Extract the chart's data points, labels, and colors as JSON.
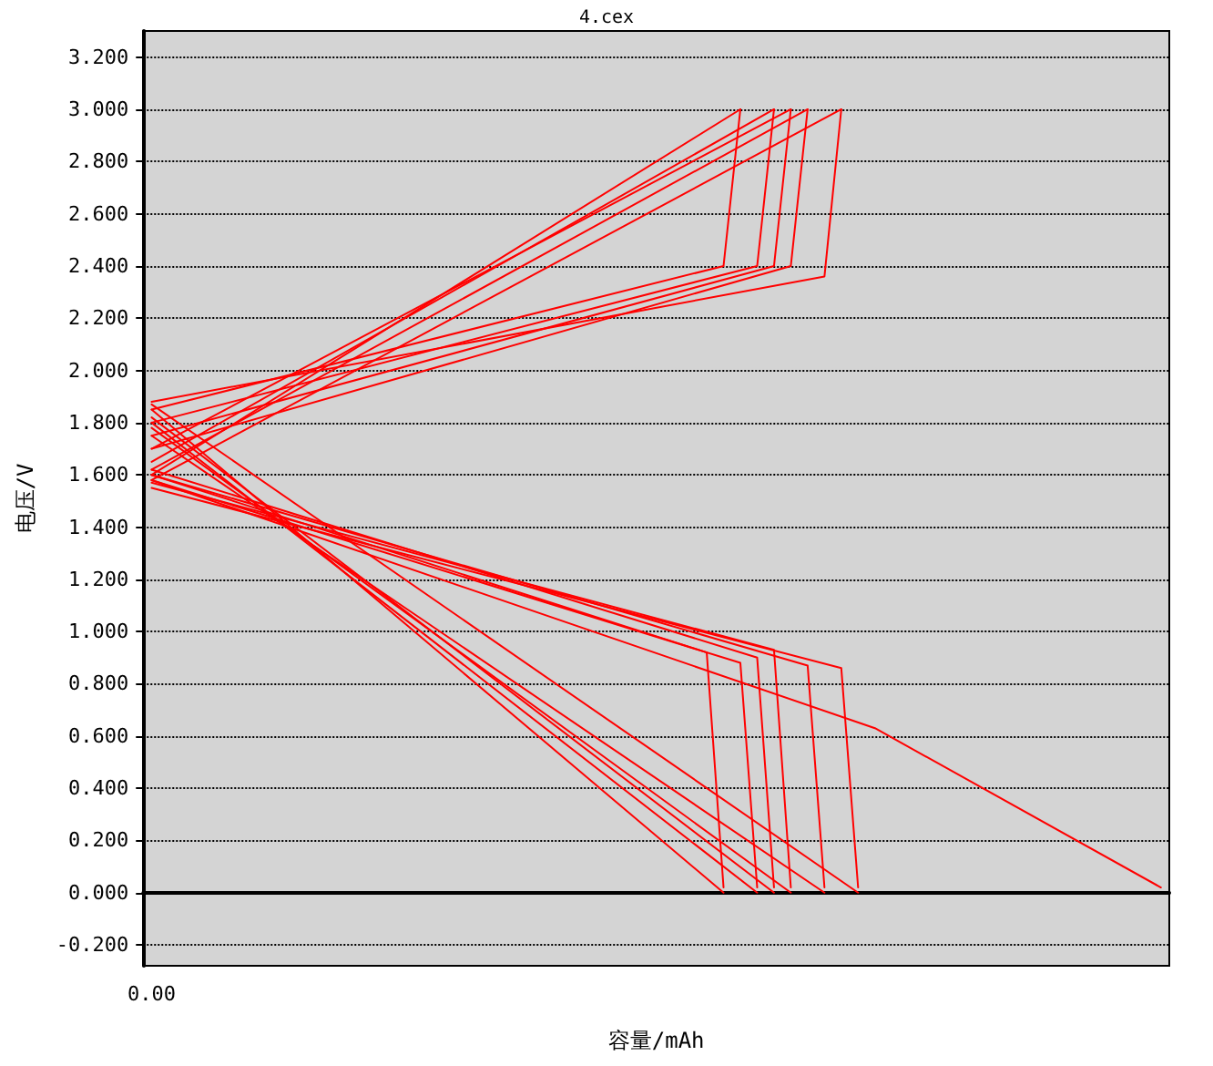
{
  "chart_data": {
    "type": "line",
    "title": "4.cex",
    "xlabel": "容量/mAh",
    "ylabel": "电压/V",
    "categories": [
      "0.00",
      null,
      null,
      null,
      null,
      null,
      null,
      null,
      null,
      null,
      null,
      null,
      null,
      null,
      null,
      null,
      null,
      null,
      null,
      null,
      null,
      null,
      null,
      null,
      null,
      null,
      null,
      null,
      null,
      null,
      null,
      null,
      null,
      null,
      null,
      null,
      null,
      null,
      null,
      null,
      null,
      null,
      null,
      null,
      null,
      null,
      null,
      null,
      null,
      null,
      null,
      null,
      null,
      null,
      null,
      null,
      null,
      null,
      null,
      null,
      null
    ],
    "ylim": [
      -0.28,
      3.3
    ],
    "yticks": [
      {
        "value": -0.2,
        "label": "-0.200"
      },
      {
        "value": 0,
        "label": "0.000"
      },
      {
        "value": 0.2,
        "label": "0.200"
      },
      {
        "value": 0.4,
        "label": "0.400"
      },
      {
        "value": 0.6,
        "label": "0.600"
      },
      {
        "value": 0.8,
        "label": "0.800"
      },
      {
        "value": 1,
        "label": "1.000"
      },
      {
        "value": 1.2,
        "label": "1.200"
      },
      {
        "value": 1.4,
        "label": "1.400"
      },
      {
        "value": 1.6,
        "label": "1.600"
      },
      {
        "value": 1.8,
        "label": "1.800"
      },
      {
        "value": 2,
        "label": "2.000"
      },
      {
        "value": 2.2,
        "label": "2.200"
      },
      {
        "value": 2.4,
        "label": "2.400"
      },
      {
        "value": 2.6,
        "label": "2.600"
      },
      {
        "value": 2.8,
        "label": "2.800"
      },
      {
        "value": 3,
        "label": "3.000"
      },
      {
        "value": 3.2,
        "label": "3.200"
      }
    ],
    "grid": "y",
    "marker": "none",
    "line_style": "solid",
    "series": [
      {
        "color": "#ff0000",
        "values": [
          1.85,
          null,
          null,
          null,
          null,
          null,
          null,
          null,
          null,
          null,
          null,
          null,
          null,
          null,
          null,
          null,
          null,
          null,
          null,
          null,
          null,
          null,
          null,
          null,
          null,
          null,
          null,
          null,
          null,
          null,
          null,
          null,
          null,
          null,
          2.4,
          3.0,
          null,
          null,
          null,
          null,
          null,
          null,
          null,
          null,
          null,
          null,
          null,
          null,
          null,
          null,
          null,
          null,
          null,
          null,
          null,
          null,
          null,
          null,
          null,
          null,
          null
        ]
      },
      {
        "color": "#ff0000",
        "values": [
          1.6,
          null,
          null,
          null,
          null,
          null,
          null,
          null,
          null,
          null,
          null,
          null,
          null,
          null,
          null,
          null,
          null,
          null,
          null,
          null,
          null,
          null,
          null,
          null,
          null,
          null,
          null,
          null,
          null,
          null,
          null,
          null,
          null,
          null,
          null,
          3.0,
          null,
          null,
          null,
          null,
          null,
          null,
          null,
          null,
          null,
          null,
          null,
          null,
          null,
          null,
          null,
          null,
          null,
          null,
          null,
          null,
          null,
          null,
          null,
          null,
          null
        ]
      },
      {
        "color": "#ff0000",
        "values": [
          1.8,
          null,
          null,
          null,
          null,
          null,
          null,
          null,
          null,
          null,
          null,
          null,
          null,
          null,
          null,
          null,
          null,
          null,
          null,
          null,
          null,
          null,
          null,
          null,
          null,
          null,
          null,
          null,
          null,
          null,
          null,
          null,
          null,
          null,
          null,
          null,
          2.4,
          3.0,
          null,
          null,
          null,
          null,
          null,
          null,
          null,
          null,
          null,
          null,
          null,
          null,
          null,
          null,
          null,
          null,
          null,
          null,
          null,
          null,
          null,
          null,
          null
        ]
      },
      {
        "color": "#ff0000",
        "values": [
          1.65,
          null,
          null,
          null,
          null,
          null,
          null,
          null,
          null,
          null,
          null,
          null,
          null,
          null,
          null,
          null,
          null,
          null,
          null,
          null,
          null,
          null,
          null,
          null,
          null,
          null,
          null,
          null,
          null,
          null,
          null,
          null,
          null,
          null,
          null,
          null,
          null,
          3.0,
          null,
          null,
          null,
          null,
          null,
          null,
          null,
          null,
          null,
          null,
          null,
          null,
          null,
          null,
          null,
          null,
          null,
          null,
          null,
          null,
          null,
          null,
          null
        ]
      },
      {
        "color": "#ff0000",
        "values": [
          1.75,
          null,
          null,
          null,
          null,
          null,
          null,
          null,
          null,
          null,
          null,
          null,
          null,
          null,
          null,
          null,
          null,
          null,
          null,
          null,
          null,
          null,
          null,
          null,
          null,
          null,
          null,
          null,
          null,
          null,
          null,
          null,
          null,
          null,
          null,
          null,
          null,
          2.4,
          3.0,
          null,
          null,
          null,
          null,
          null,
          null,
          null,
          null,
          null,
          null,
          null,
          null,
          null,
          null,
          null,
          null,
          null,
          null,
          null,
          null,
          null,
          null
        ]
      },
      {
        "color": "#ff0000",
        "values": [
          1.7,
          null,
          null,
          null,
          null,
          null,
          null,
          null,
          null,
          null,
          null,
          null,
          null,
          null,
          null,
          null,
          null,
          null,
          null,
          null,
          null,
          null,
          null,
          null,
          null,
          null,
          null,
          null,
          null,
          null,
          null,
          null,
          null,
          null,
          null,
          null,
          null,
          null,
          3.0,
          null,
          null,
          null,
          null,
          null,
          null,
          null,
          null,
          null,
          null,
          null,
          null,
          null,
          null,
          null,
          null,
          null,
          null,
          null,
          null,
          null,
          null
        ]
      },
      {
        "color": "#ff0000",
        "values": [
          1.7,
          null,
          null,
          null,
          null,
          null,
          null,
          null,
          null,
          null,
          null,
          null,
          null,
          null,
          null,
          null,
          null,
          null,
          null,
          null,
          null,
          null,
          null,
          null,
          null,
          null,
          null,
          null,
          null,
          null,
          null,
          null,
          null,
          null,
          null,
          null,
          null,
          null,
          2.4,
          3.0,
          null,
          null,
          null,
          null,
          null,
          null,
          null,
          null,
          null,
          null,
          null,
          null,
          null,
          null,
          null,
          null,
          null,
          null,
          null,
          null,
          null
        ]
      },
      {
        "color": "#ff0000",
        "values": [
          1.62,
          null,
          null,
          null,
          null,
          null,
          null,
          null,
          null,
          null,
          null,
          null,
          null,
          null,
          null,
          null,
          null,
          null,
          null,
          null,
          null,
          null,
          null,
          null,
          null,
          null,
          null,
          null,
          null,
          null,
          null,
          null,
          null,
          null,
          null,
          null,
          null,
          null,
          null,
          3.0,
          null,
          null,
          null,
          null,
          null,
          null,
          null,
          null,
          null,
          null,
          null,
          null,
          null,
          null,
          null,
          null,
          null,
          null,
          null,
          null,
          null
        ]
      },
      {
        "color": "#ff0000",
        "values": [
          1.88,
          null,
          null,
          null,
          null,
          null,
          null,
          null,
          null,
          null,
          null,
          null,
          null,
          null,
          null,
          null,
          null,
          null,
          null,
          null,
          null,
          null,
          null,
          null,
          null,
          null,
          null,
          null,
          null,
          null,
          null,
          null,
          null,
          null,
          null,
          null,
          null,
          null,
          null,
          null,
          2.36,
          3.0,
          null,
          null,
          null,
          null,
          null,
          null,
          null,
          null,
          null,
          null,
          null,
          null,
          null,
          null,
          null,
          null,
          null,
          null,
          null
        ]
      },
      {
        "color": "#ff0000",
        "values": [
          1.58,
          null,
          null,
          null,
          null,
          null,
          null,
          null,
          null,
          null,
          null,
          null,
          null,
          null,
          null,
          null,
          null,
          null,
          null,
          null,
          null,
          null,
          null,
          null,
          null,
          null,
          null,
          null,
          null,
          null,
          null,
          null,
          null,
          null,
          null,
          null,
          null,
          null,
          null,
          null,
          null,
          3.0,
          null,
          null,
          null,
          null,
          null,
          null,
          null,
          null,
          null,
          null,
          null,
          null,
          null,
          null,
          null,
          null,
          null,
          null,
          null
        ]
      },
      {
        "color": "#ff0000",
        "values": [
          1.6,
          null,
          null,
          null,
          null,
          null,
          null,
          null,
          null,
          null,
          null,
          null,
          null,
          null,
          null,
          null,
          null,
          null,
          null,
          null,
          null,
          null,
          null,
          null,
          null,
          null,
          null,
          null,
          null,
          null,
          null,
          null,
          null,
          0.92,
          0.02,
          null,
          null,
          null,
          null,
          null,
          null,
          null,
          null,
          null,
          null,
          null,
          null,
          null,
          null,
          null,
          null,
          null,
          null,
          null,
          null,
          null,
          null,
          null,
          null,
          null,
          null
        ]
      },
      {
        "color": "#ff0000",
        "values": [
          1.85,
          null,
          null,
          null,
          null,
          null,
          null,
          null,
          null,
          null,
          null,
          null,
          null,
          null,
          null,
          null,
          null,
          null,
          null,
          null,
          null,
          null,
          null,
          null,
          null,
          null,
          null,
          null,
          null,
          null,
          null,
          null,
          null,
          null,
          0,
          null,
          null,
          null,
          null,
          null,
          null,
          null,
          null,
          null,
          null,
          null,
          null,
          null,
          null,
          null,
          null,
          null,
          null,
          null,
          null,
          null,
          null,
          null,
          null,
          null,
          null
        ]
      },
      {
        "color": "#ff0000",
        "values": [
          1.58,
          null,
          null,
          null,
          null,
          null,
          null,
          null,
          null,
          null,
          null,
          null,
          null,
          null,
          null,
          null,
          null,
          null,
          null,
          null,
          null,
          null,
          null,
          null,
          null,
          null,
          null,
          null,
          null,
          null,
          null,
          null,
          null,
          null,
          null,
          0.88,
          0.02,
          null,
          null,
          null,
          null,
          null,
          null,
          null,
          null,
          null,
          null,
          null,
          null,
          null,
          null,
          null,
          null,
          null,
          null,
          null,
          null,
          null,
          null,
          null,
          null
        ]
      },
      {
        "color": "#ff0000",
        "values": [
          1.8,
          null,
          null,
          null,
          null,
          null,
          null,
          null,
          null,
          null,
          null,
          null,
          null,
          null,
          null,
          null,
          null,
          null,
          null,
          null,
          null,
          null,
          null,
          null,
          null,
          null,
          null,
          null,
          null,
          null,
          null,
          null,
          null,
          null,
          null,
          null,
          0,
          null,
          null,
          null,
          null,
          null,
          null,
          null,
          null,
          null,
          null,
          null,
          null,
          null,
          null,
          null,
          null,
          null,
          null,
          null,
          null,
          null,
          null,
          null,
          null
        ]
      },
      {
        "color": "#ff0000",
        "values": [
          1.62,
          null,
          null,
          null,
          null,
          null,
          null,
          null,
          null,
          null,
          null,
          null,
          null,
          null,
          null,
          null,
          null,
          null,
          null,
          null,
          null,
          null,
          null,
          null,
          null,
          null,
          null,
          null,
          null,
          null,
          null,
          null,
          null,
          null,
          null,
          null,
          0.9,
          0.02,
          null,
          null,
          null,
          null,
          null,
          null,
          null,
          null,
          null,
          null,
          null,
          null,
          null,
          null,
          null,
          null,
          null,
          null,
          null,
          null,
          null,
          null,
          null
        ]
      },
      {
        "color": "#ff0000",
        "values": [
          1.82,
          null,
          null,
          null,
          null,
          null,
          null,
          null,
          null,
          null,
          null,
          null,
          null,
          null,
          null,
          null,
          null,
          null,
          null,
          null,
          null,
          null,
          null,
          null,
          null,
          null,
          null,
          null,
          null,
          null,
          null,
          null,
          null,
          null,
          null,
          null,
          null,
          0,
          null,
          null,
          null,
          null,
          null,
          null,
          null,
          null,
          null,
          null,
          null,
          null,
          null,
          null,
          null,
          null,
          null,
          null,
          null,
          null,
          null,
          null,
          null
        ]
      },
      {
        "color": "#ff0000",
        "values": [
          1.57,
          null,
          null,
          null,
          null,
          null,
          null,
          null,
          null,
          null,
          null,
          null,
          null,
          null,
          null,
          null,
          null,
          null,
          null,
          null,
          null,
          null,
          null,
          null,
          null,
          null,
          null,
          null,
          null,
          null,
          null,
          null,
          null,
          null,
          null,
          null,
          null,
          0.93,
          0.02,
          null,
          null,
          null,
          null,
          null,
          null,
          null,
          null,
          null,
          null,
          null,
          null,
          null,
          null,
          null,
          null,
          null,
          null,
          null,
          null,
          null,
          null
        ]
      },
      {
        "color": "#ff0000",
        "values": [
          1.78,
          null,
          null,
          null,
          null,
          null,
          null,
          null,
          null,
          null,
          null,
          null,
          null,
          null,
          null,
          null,
          null,
          null,
          null,
          null,
          null,
          null,
          null,
          null,
          null,
          null,
          null,
          null,
          null,
          null,
          null,
          null,
          null,
          null,
          null,
          null,
          null,
          null,
          0,
          null,
          null,
          null,
          null,
          null,
          null,
          null,
          null,
          null,
          null,
          null,
          null,
          null,
          null,
          null,
          null,
          null,
          null,
          null,
          null,
          null,
          null
        ]
      },
      {
        "color": "#ff0000",
        "values": [
          1.6,
          null,
          null,
          null,
          null,
          null,
          null,
          null,
          null,
          null,
          null,
          null,
          null,
          null,
          null,
          null,
          null,
          null,
          null,
          null,
          null,
          null,
          null,
          null,
          null,
          null,
          null,
          null,
          null,
          null,
          null,
          null,
          null,
          null,
          null,
          null,
          null,
          null,
          null,
          0.87,
          0.02,
          null,
          null,
          null,
          null,
          null,
          null,
          null,
          null,
          null,
          null,
          null,
          null,
          null,
          null,
          null,
          null,
          null,
          null,
          null,
          null
        ]
      },
      {
        "color": "#ff0000",
        "values": [
          1.75,
          null,
          null,
          null,
          null,
          null,
          null,
          null,
          null,
          null,
          null,
          null,
          null,
          null,
          null,
          null,
          null,
          null,
          null,
          null,
          null,
          null,
          null,
          null,
          null,
          null,
          null,
          null,
          null,
          null,
          null,
          null,
          null,
          null,
          null,
          null,
          null,
          null,
          null,
          null,
          0,
          null,
          null,
          null,
          null,
          null,
          null,
          null,
          null,
          null,
          null,
          null,
          null,
          null,
          null,
          null,
          null,
          null,
          null,
          null,
          null
        ]
      },
      {
        "color": "#ff0000",
        "values": [
          1.55,
          null,
          null,
          null,
          null,
          null,
          null,
          null,
          null,
          null,
          null,
          null,
          null,
          null,
          null,
          null,
          null,
          null,
          null,
          null,
          null,
          null,
          null,
          null,
          null,
          null,
          null,
          null,
          null,
          null,
          null,
          null,
          null,
          null,
          null,
          null,
          null,
          null,
          null,
          null,
          null,
          0.86,
          0.02,
          null,
          null,
          null,
          null,
          null,
          null,
          null,
          null,
          null,
          null,
          null,
          null,
          null,
          null,
          null,
          null,
          null,
          null
        ]
      },
      {
        "color": "#ff0000",
        "values": [
          1.87,
          null,
          null,
          null,
          null,
          null,
          null,
          null,
          null,
          null,
          null,
          null,
          null,
          null,
          null,
          null,
          null,
          null,
          null,
          null,
          null,
          null,
          null,
          null,
          null,
          null,
          null,
          null,
          null,
          null,
          null,
          null,
          null,
          null,
          null,
          null,
          null,
          null,
          null,
          null,
          null,
          null,
          0,
          null,
          null,
          null,
          null,
          null,
          null,
          null,
          null,
          null,
          null,
          null,
          null,
          null,
          null,
          null,
          null,
          null,
          null
        ]
      },
      {
        "color": "#ff0000",
        "values": [
          1.58,
          null,
          null,
          null,
          null,
          null,
          null,
          null,
          null,
          null,
          null,
          null,
          null,
          null,
          null,
          null,
          null,
          null,
          null,
          null,
          null,
          null,
          null,
          null,
          null,
          null,
          null,
          null,
          null,
          null,
          null,
          null,
          null,
          null,
          null,
          null,
          null,
          null,
          null,
          null,
          null,
          null,
          null,
          0.63,
          null,
          null,
          null,
          null,
          null,
          null,
          null,
          null,
          null,
          null,
          null,
          null,
          null,
          null,
          null,
          null,
          0.02
        ]
      }
    ]
  }
}
